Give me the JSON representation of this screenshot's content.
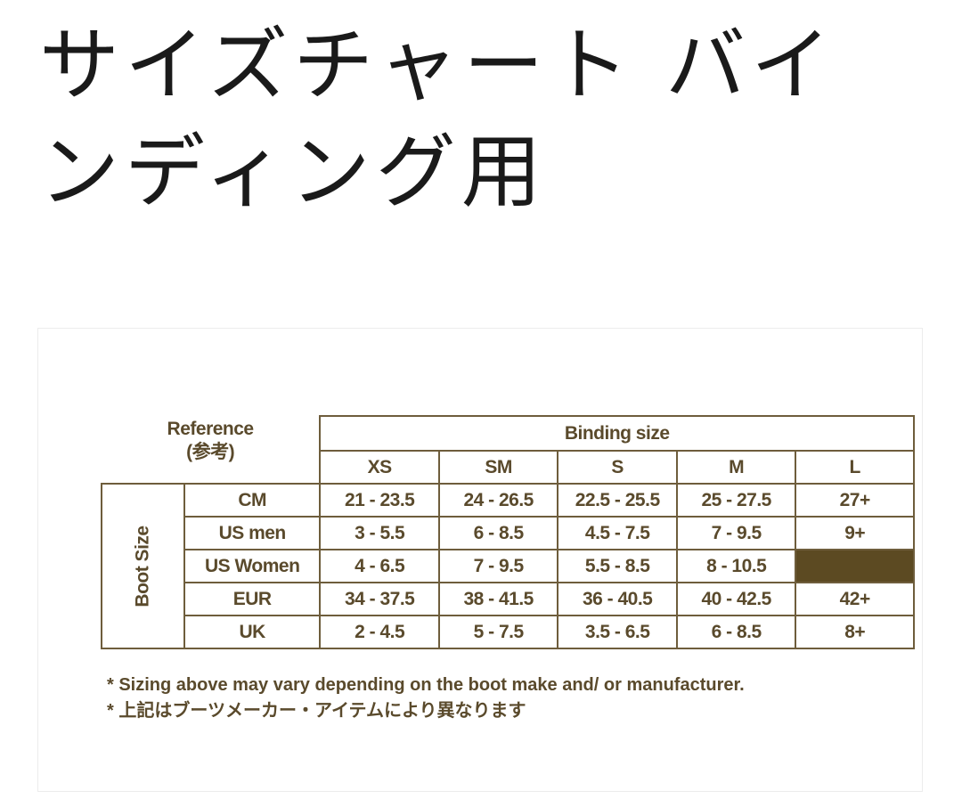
{
  "title": "サイズチャート バインディング用",
  "chart": {
    "reference_label": "Reference",
    "reference_label_jp": "(参考)",
    "binding_size_label": "Binding size",
    "boot_size_label": "Boot Size",
    "columns": [
      "XS",
      "SM",
      "S",
      "M",
      "L"
    ],
    "rows": [
      {
        "label": "CM",
        "values": [
          "21 - 23.5",
          "24 - 26.5",
          "22.5 - 25.5",
          "25 - 27.5",
          "27+"
        ]
      },
      {
        "label": "US men",
        "values": [
          "3 - 5.5",
          "6 - 8.5",
          "4.5 - 7.5",
          "7 - 9.5",
          "9+"
        ]
      },
      {
        "label": "US Women",
        "values": [
          "4 - 6.5",
          "7 - 9.5",
          "5.5 - 8.5",
          "8 - 10.5",
          ""
        ]
      },
      {
        "label": "EUR",
        "values": [
          "34 - 37.5",
          "38 - 41.5",
          "36 - 40.5",
          "40 - 42.5",
          "42+"
        ]
      },
      {
        "label": "UK",
        "values": [
          "2 - 4.5",
          "5 - 7.5",
          "3.5 - 6.5",
          "6 - 8.5",
          "8+"
        ]
      }
    ],
    "filled_cell_color": "#5c4a22",
    "text_color": "#5a4a2c"
  },
  "notes": [
    "* Sizing above may vary depending on the boot make and/ or manufacturer.",
    "* 上記はブーツメーカー・アイテムにより異なります"
  ]
}
